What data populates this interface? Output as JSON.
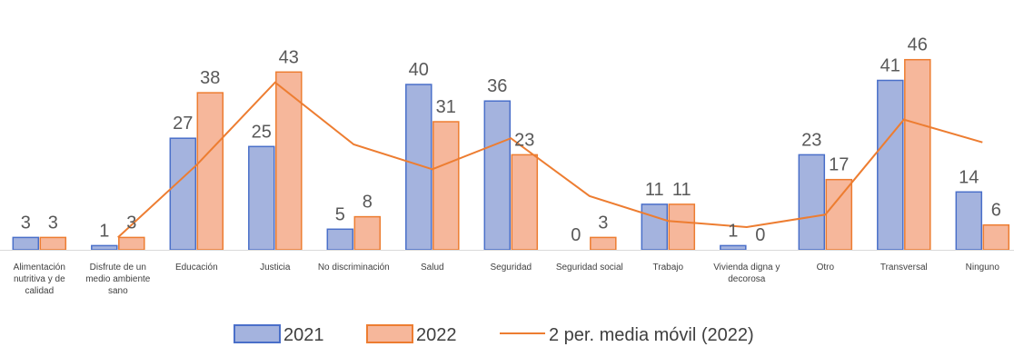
{
  "chart_data": {
    "type": "bar",
    "categories": [
      [
        "Alimentación",
        "nutritiva y de",
        "calidad"
      ],
      [
        "Disfrute de un",
        "medio ambiente",
        "sano"
      ],
      [
        "Educación"
      ],
      [
        "Justicia"
      ],
      [
        "No discriminación"
      ],
      [
        "Salud"
      ],
      [
        "Seguridad"
      ],
      [
        "Seguridad social"
      ],
      [
        "Trabajo"
      ],
      [
        "Vivienda digna y",
        "decorosa"
      ],
      [
        "Otro"
      ],
      [
        "Transversal"
      ],
      [
        "Ninguno"
      ]
    ],
    "series": [
      {
        "name": "2021",
        "values": [
          3,
          1,
          27,
          25,
          5,
          40,
          36,
          0,
          11,
          1,
          23,
          41,
          14
        ],
        "fill": "#a4b3de",
        "stroke": "#4a6fc9"
      },
      {
        "name": "2022",
        "values": [
          3,
          3,
          38,
          43,
          8,
          31,
          23,
          3,
          11,
          0,
          17,
          46,
          6
        ],
        "fill": "#f6b79b",
        "stroke": "#ed7d31"
      }
    ],
    "trendline": {
      "name": "2 per. media móvil (2022)",
      "type": "moving-average",
      "period": 2,
      "values": [
        null,
        3,
        20.5,
        40.5,
        25.5,
        19.5,
        27,
        13,
        7,
        5.5,
        8.5,
        31.5,
        26
      ],
      "color": "#ed7d31"
    },
    "ylim": [
      0,
      50
    ],
    "grid": false,
    "legend_position": "bottom"
  }
}
